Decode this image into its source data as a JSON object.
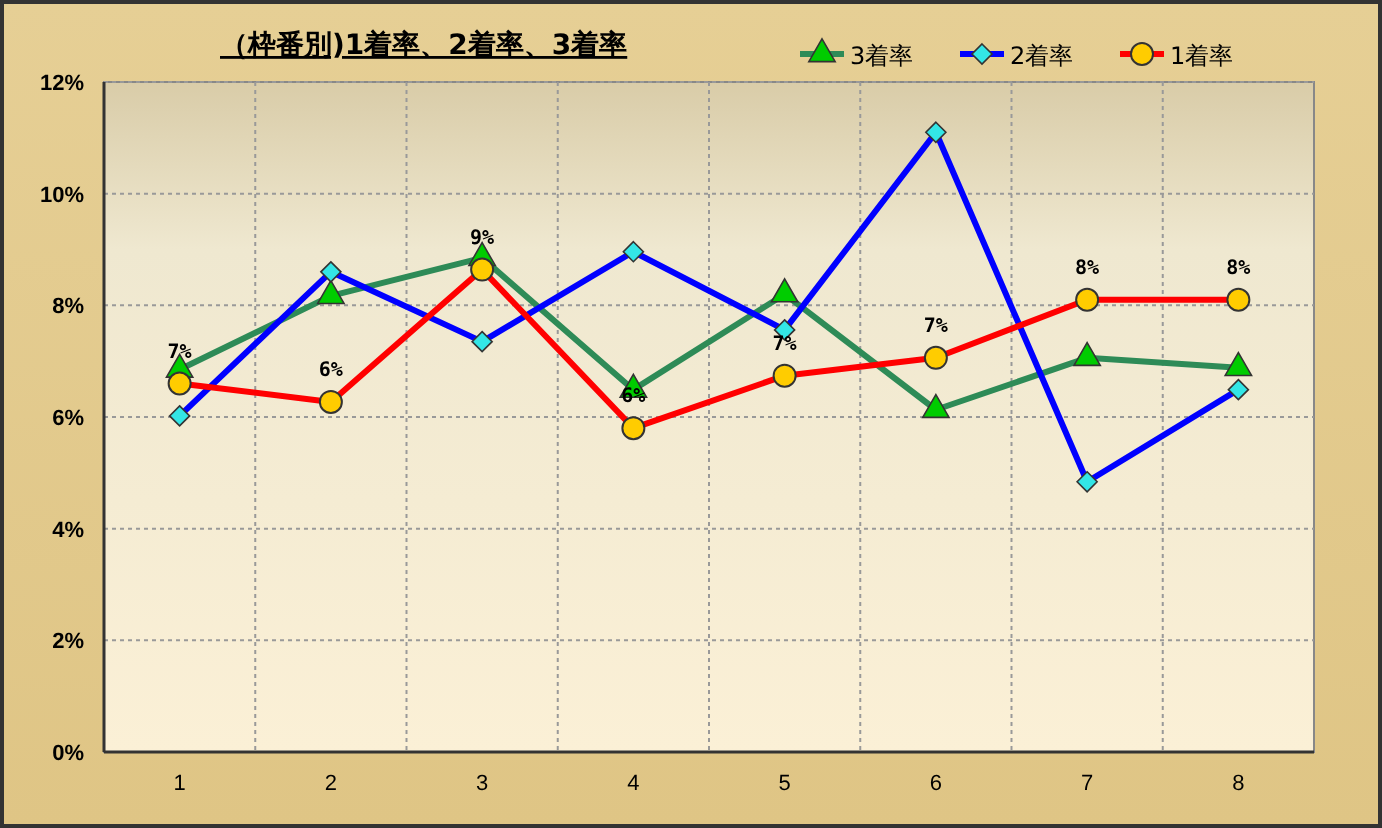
{
  "chart_data": {
    "type": "line",
    "title": "（枠番別)1着率、2着率、3着率",
    "categories": [
      "1",
      "2",
      "3",
      "4",
      "5",
      "6",
      "7",
      "8"
    ],
    "series": [
      {
        "name": "3着率",
        "color": "#2e8b57",
        "marker": "triangle",
        "values": [
          6.85,
          8.17,
          8.85,
          6.49,
          8.2,
          6.13,
          7.06,
          6.88
        ]
      },
      {
        "name": "2着率",
        "color": "#0000ff",
        "marker": "diamond",
        "values": [
          6.02,
          8.6,
          7.35,
          8.96,
          7.56,
          11.1,
          4.84,
          6.49
        ]
      },
      {
        "name": "1着率",
        "color": "#ff0000",
        "marker": "circle",
        "values": [
          6.6,
          6.27,
          8.64,
          5.8,
          6.74,
          7.06,
          8.1,
          8.1
        ],
        "value_labels": [
          "7%",
          "6%",
          "9%",
          "6%",
          "7%",
          "7%",
          "8%",
          "8%"
        ]
      }
    ],
    "ylim": [
      0,
      12
    ],
    "yticks": [
      {
        "value": 0,
        "label": "0%"
      },
      {
        "value": 2,
        "label": "2%"
      },
      {
        "value": 4,
        "label": "4%"
      },
      {
        "value": 6,
        "label": "6%"
      },
      {
        "value": 8,
        "label": "8%"
      },
      {
        "value": 10,
        "label": "10%"
      },
      {
        "value": 12,
        "label": "12%"
      }
    ],
    "grid": true,
    "legend": "top right",
    "line_style": "solid"
  }
}
